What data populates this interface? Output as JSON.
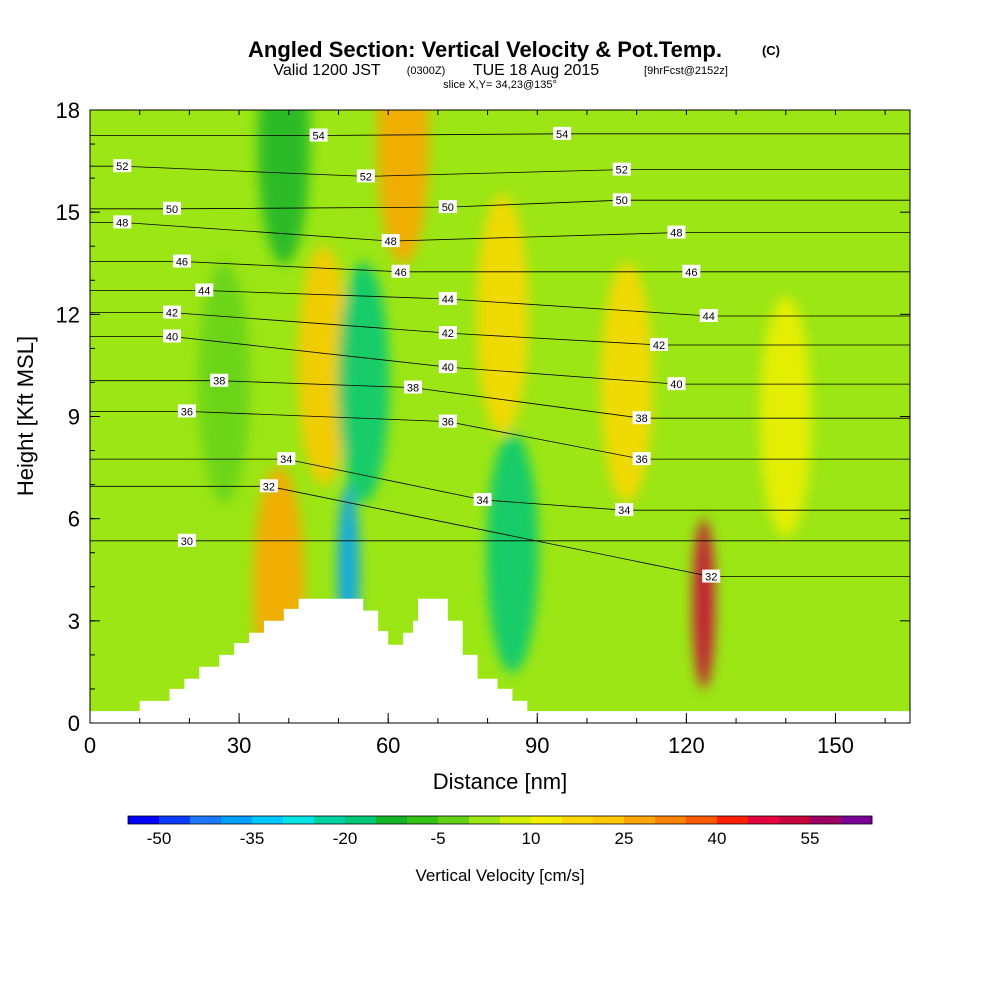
{
  "title": {
    "main": "Angled Section: Vertical Velocity & Pot.Temp.",
    "main_unit": "(C)",
    "valid_prefix": "Valid 1200 JST",
    "valid_utc": "(0300Z)",
    "valid_date": "TUE 18 Aug 2015",
    "forecast": "[9hrFcst@2152z]",
    "slice": "slice X,Y= 34,23@135°"
  },
  "chart_data": {
    "type": "heatmap",
    "xlabel": "Distance [nm]",
    "ylabel": "Height [Kft MSL]",
    "xlim": [
      0,
      165
    ],
    "ylim": [
      0,
      18
    ],
    "x_ticks": [
      "0",
      "30",
      "60",
      "90",
      "120",
      "150"
    ],
    "y_ticks": [
      "0",
      "3",
      "6",
      "9",
      "12",
      "15",
      "18"
    ],
    "colorbar": {
      "label": "Vertical Velocity [cm/s]",
      "tick_labels": [
        "-50",
        "-35",
        "-20",
        "-5",
        "10",
        "25",
        "40",
        "55"
      ],
      "levels": [
        -50,
        -45,
        -40,
        -35,
        -30,
        -25,
        -20,
        -15,
        -10,
        -5,
        0,
        5,
        10,
        15,
        20,
        25,
        30,
        35,
        40,
        45,
        50,
        55,
        60
      ],
      "colors": [
        "#0000ff",
        "#0a3cff",
        "#1e78ff",
        "#00a0ff",
        "#00c8ff",
        "#00e6e6",
        "#00d2a0",
        "#00c878",
        "#14b428",
        "#32c314",
        "#64d214",
        "#9be614",
        "#d2f000",
        "#f0f000",
        "#ffd700",
        "#ffc800",
        "#ffa500",
        "#ff8200",
        "#ff5a00",
        "#ff1e00",
        "#e6003c",
        "#c8003c",
        "#a00064",
        "#780096"
      ]
    },
    "velocity_features": [
      {
        "x": 63,
        "y": 17,
        "value": 25
      },
      {
        "x": 47,
        "y": 10.5,
        "value": 20
      },
      {
        "x": 38,
        "y": 4,
        "value": 25
      },
      {
        "x": 52,
        "y": 4.5,
        "value": -40
      },
      {
        "x": 85,
        "y": 5,
        "value": -20
      },
      {
        "x": 55,
        "y": 10,
        "value": -20
      },
      {
        "x": 39,
        "y": 17,
        "value": -15
      },
      {
        "x": 123.5,
        "y": 3.5,
        "value": 50
      },
      {
        "x": 108,
        "y": 10,
        "value": 15
      },
      {
        "x": 83,
        "y": 12,
        "value": 15
      },
      {
        "x": 27,
        "y": 10,
        "value": -5
      },
      {
        "x": 140,
        "y": 9,
        "value": 10
      }
    ],
    "terrain_profile": [
      [
        0,
        0.35
      ],
      [
        10,
        0.35
      ],
      [
        10,
        0.65
      ],
      [
        16,
        0.65
      ],
      [
        16,
        1.0
      ],
      [
        19,
        1.0
      ],
      [
        19,
        1.3
      ],
      [
        22,
        1.3
      ],
      [
        22,
        1.65
      ],
      [
        26,
        1.65
      ],
      [
        26,
        2.0
      ],
      [
        29,
        2.0
      ],
      [
        29,
        2.35
      ],
      [
        32,
        2.35
      ],
      [
        32,
        2.65
      ],
      [
        35,
        2.65
      ],
      [
        35,
        3.0
      ],
      [
        39,
        3.0
      ],
      [
        39,
        3.35
      ],
      [
        42,
        3.35
      ],
      [
        42,
        3.65
      ],
      [
        55,
        3.65
      ],
      [
        55,
        3.3
      ],
      [
        58,
        3.3
      ],
      [
        58,
        2.7
      ],
      [
        60,
        2.7
      ],
      [
        60,
        2.3
      ],
      [
        63,
        2.3
      ],
      [
        63,
        2.65
      ],
      [
        65,
        2.65
      ],
      [
        65,
        3.0
      ],
      [
        66,
        3.0
      ],
      [
        66,
        3.65
      ],
      [
        72,
        3.65
      ],
      [
        72,
        3.0
      ],
      [
        75,
        3.0
      ],
      [
        75,
        2.0
      ],
      [
        78,
        2.0
      ],
      [
        78,
        1.3
      ],
      [
        82,
        1.3
      ],
      [
        82,
        1.0
      ],
      [
        85,
        1.0
      ],
      [
        85,
        0.65
      ],
      [
        88,
        0.65
      ],
      [
        88,
        0.35
      ],
      [
        165,
        0.35
      ]
    ],
    "theta_contour_labels": [
      {
        "text": "54",
        "x": 46,
        "y": 17.25
      },
      {
        "text": "54",
        "x": 95,
        "y": 17.3
      },
      {
        "text": "52",
        "x": 6.5,
        "y": 16.35
      },
      {
        "text": "52",
        "x": 55.5,
        "y": 16.05
      },
      {
        "text": "52",
        "x": 107,
        "y": 16.25
      },
      {
        "text": "50",
        "x": 16.5,
        "y": 15.1
      },
      {
        "text": "50",
        "x": 72,
        "y": 15.15
      },
      {
        "text": "50",
        "x": 107,
        "y": 15.35
      },
      {
        "text": "48",
        "x": 6.5,
        "y": 14.7
      },
      {
        "text": "48",
        "x": 60.5,
        "y": 14.15
      },
      {
        "text": "48",
        "x": 118,
        "y": 14.4
      },
      {
        "text": "46",
        "x": 18.5,
        "y": 13.55
      },
      {
        "text": "46",
        "x": 62.5,
        "y": 13.25
      },
      {
        "text": "46",
        "x": 121,
        "y": 13.25
      },
      {
        "text": "44",
        "x": 23,
        "y": 12.7
      },
      {
        "text": "44",
        "x": 72,
        "y": 12.45
      },
      {
        "text": "44",
        "x": 124.5,
        "y": 11.95
      },
      {
        "text": "42",
        "x": 16.5,
        "y": 12.05
      },
      {
        "text": "42",
        "x": 72,
        "y": 11.45
      },
      {
        "text": "42",
        "x": 114.5,
        "y": 11.1
      },
      {
        "text": "40",
        "x": 16.5,
        "y": 11.35
      },
      {
        "text": "40",
        "x": 72,
        "y": 10.45
      },
      {
        "text": "40",
        "x": 118,
        "y": 9.95
      },
      {
        "text": "38",
        "x": 26,
        "y": 10.05
      },
      {
        "text": "38",
        "x": 65,
        "y": 9.85
      },
      {
        "text": "38",
        "x": 111,
        "y": 8.95
      },
      {
        "text": "36",
        "x": 19.5,
        "y": 9.15
      },
      {
        "text": "36",
        "x": 72,
        "y": 8.85
      },
      {
        "text": "36",
        "x": 111,
        "y": 7.75
      },
      {
        "text": "34",
        "x": 39.5,
        "y": 7.75
      },
      {
        "text": "34",
        "x": 79,
        "y": 6.55
      },
      {
        "text": "34",
        "x": 107.5,
        "y": 6.25
      },
      {
        "text": "32",
        "x": 36,
        "y": 6.95
      },
      {
        "text": "32",
        "x": 125,
        "y": 4.3
      },
      {
        "text": "30",
        "x": 19.5,
        "y": 5.35
      }
    ]
  },
  "colors": {
    "background": "#ffffff",
    "contour": "#000000",
    "terrain": "#ffffff"
  }
}
